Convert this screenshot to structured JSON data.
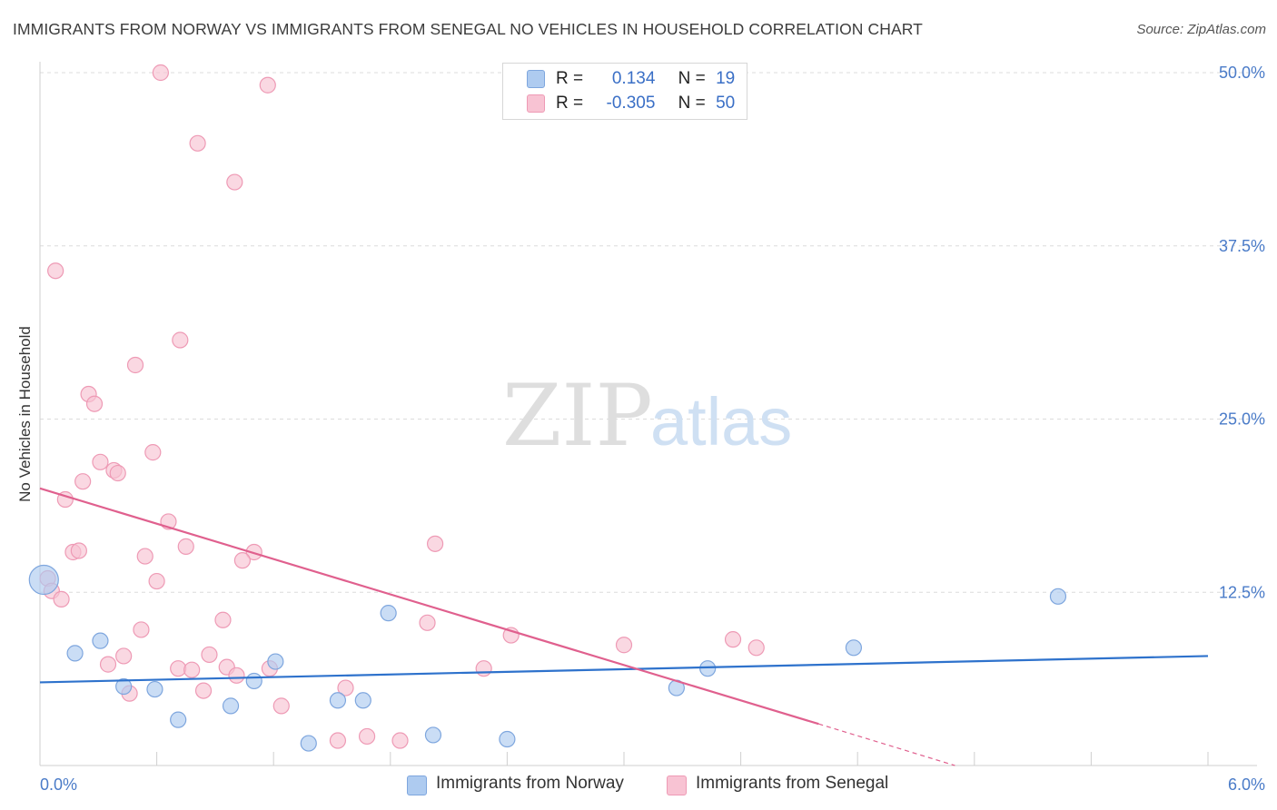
{
  "title": "IMMIGRANTS FROM NORWAY VS IMMIGRANTS FROM SENEGAL NO VEHICLES IN HOUSEHOLD CORRELATION CHART",
  "source": "Source: ZipAtlas.com",
  "watermark": {
    "zip": "ZIP",
    "atlas": "atlas"
  },
  "colors": {
    "norway_fill": "#aecbf0",
    "norway_stroke": "#7ea6de",
    "norway_line": "#2e72cc",
    "senegal_fill": "#f8c3d3",
    "senegal_stroke": "#ee9ab5",
    "senegal_line": "#e0608e",
    "axis_label": "#4a7bc8",
    "grid": "#dcdcdc"
  },
  "legend": {
    "rows": [
      {
        "r_label": "R =",
        "r_value": "0.134",
        "n_label": "N =",
        "n_value": "19"
      },
      {
        "r_label": "R =",
        "r_value": "-0.305",
        "n_label": "N =",
        "n_value": "50"
      }
    ]
  },
  "chart_data": {
    "type": "scatter",
    "ylabel": "No Vehicles in Household",
    "xlim": [
      0,
      6.0
    ],
    "ylim": [
      0,
      50
    ],
    "x_tick_labels": [
      "0.0%",
      "6.0%"
    ],
    "y_ticks": [
      12.5,
      25.0,
      37.5,
      50.0
    ],
    "y_tick_labels": [
      "12.5%",
      "25.0%",
      "37.5%",
      "50.0%"
    ],
    "grid": "horizontal dashed",
    "series": [
      {
        "name": "Immigrants from Norway",
        "points": [
          [
            0.02,
            13.4
          ],
          [
            0.18,
            8.1
          ],
          [
            0.31,
            9.0
          ],
          [
            0.43,
            5.7
          ],
          [
            0.59,
            5.5
          ],
          [
            0.71,
            3.3
          ],
          [
            0.98,
            4.3
          ],
          [
            1.1,
            6.1
          ],
          [
            1.21,
            7.5
          ],
          [
            1.38,
            1.6
          ],
          [
            1.53,
            4.7
          ],
          [
            1.66,
            4.7
          ],
          [
            1.79,
            11.0
          ],
          [
            2.02,
            2.2
          ],
          [
            2.4,
            1.9
          ],
          [
            3.27,
            5.6
          ],
          [
            3.43,
            7.0
          ],
          [
            4.18,
            8.5
          ],
          [
            5.23,
            12.2
          ]
        ],
        "trend": {
          "x": [
            0.0,
            6.0
          ],
          "y": [
            6.0,
            7.9
          ]
        }
      },
      {
        "name": "Immigrants from Senegal",
        "points": [
          [
            0.62,
            50.0
          ],
          [
            1.17,
            49.1
          ],
          [
            0.81,
            44.9
          ],
          [
            1.0,
            42.1
          ],
          [
            0.08,
            35.7
          ],
          [
            0.72,
            30.7
          ],
          [
            0.49,
            28.9
          ],
          [
            0.25,
            26.8
          ],
          [
            0.28,
            26.1
          ],
          [
            0.58,
            22.6
          ],
          [
            0.31,
            21.9
          ],
          [
            0.38,
            21.3
          ],
          [
            0.4,
            21.1
          ],
          [
            0.22,
            20.5
          ],
          [
            0.13,
            19.2
          ],
          [
            0.66,
            17.6
          ],
          [
            0.75,
            15.8
          ],
          [
            0.17,
            15.4
          ],
          [
            0.2,
            15.5
          ],
          [
            0.54,
            15.1
          ],
          [
            1.1,
            15.4
          ],
          [
            1.04,
            14.8
          ],
          [
            2.03,
            16.0
          ],
          [
            0.6,
            13.3
          ],
          [
            0.04,
            13.5
          ],
          [
            0.06,
            12.6
          ],
          [
            0.11,
            12.0
          ],
          [
            0.94,
            10.5
          ],
          [
            1.99,
            10.3
          ],
          [
            0.52,
            9.8
          ],
          [
            2.42,
            9.4
          ],
          [
            0.43,
            7.9
          ],
          [
            0.87,
            8.0
          ],
          [
            3.0,
            8.7
          ],
          [
            3.56,
            9.1
          ],
          [
            3.68,
            8.5
          ],
          [
            0.35,
            7.3
          ],
          [
            0.71,
            7.0
          ],
          [
            0.78,
            6.9
          ],
          [
            0.96,
            7.1
          ],
          [
            1.01,
            6.5
          ],
          [
            1.18,
            7.0
          ],
          [
            2.28,
            7.0
          ],
          [
            0.46,
            5.2
          ],
          [
            0.84,
            5.4
          ],
          [
            1.57,
            5.6
          ],
          [
            1.24,
            4.3
          ],
          [
            1.53,
            1.8
          ],
          [
            1.68,
            2.1
          ],
          [
            1.85,
            1.8
          ]
        ],
        "trend": {
          "x": [
            0.0,
            4.0
          ],
          "y": [
            20.0,
            3.0
          ]
        },
        "trend_dashed": {
          "x": [
            4.0,
            4.7
          ],
          "y": [
            3.0,
            0.0
          ]
        }
      }
    ]
  }
}
